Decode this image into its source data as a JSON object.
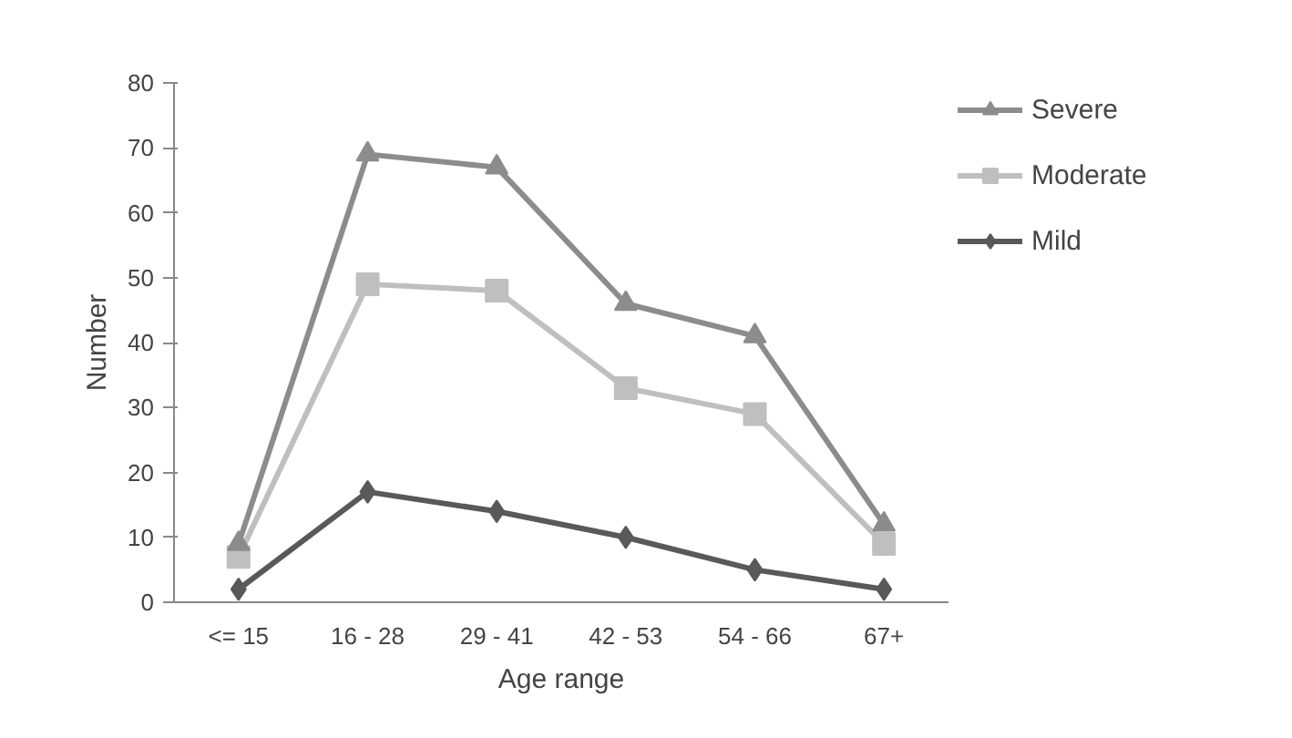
{
  "chart_data": {
    "type": "line",
    "xlabel": "Age range",
    "ylabel": "Number",
    "categories": [
      "<= 15",
      "16 - 28",
      "29 - 41",
      "42 - 53",
      "54 - 66",
      "67+"
    ],
    "ylim": [
      0,
      80
    ],
    "yticks": [
      0,
      10,
      20,
      30,
      40,
      50,
      60,
      70,
      80
    ],
    "grid": false,
    "legend": "right",
    "line_style": "solid",
    "series": [
      {
        "name": "Severe",
        "color": "#8c8c8c",
        "marker": "triangle",
        "values": [
          9,
          69,
          67,
          46,
          41,
          12
        ]
      },
      {
        "name": "Moderate",
        "color": "#bfbfbf",
        "marker": "square",
        "values": [
          7,
          49,
          48,
          33,
          29,
          9
        ]
      },
      {
        "name": "Mild",
        "color": "#595959",
        "marker": "diamond",
        "values": [
          2,
          17,
          14,
          10,
          5,
          2
        ]
      }
    ]
  }
}
